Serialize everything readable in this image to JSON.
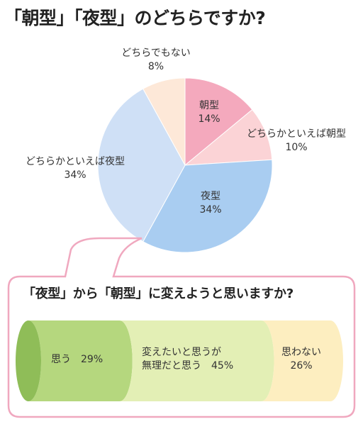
{
  "title": "「朝型」「夜型」のどちらですか?",
  "question2": "「夜型」から「朝型」に変えようと思いますか?",
  "chart_data": [
    {
      "type": "pie",
      "title": "「朝型」「夜型」のどちらですか?",
      "slices": [
        {
          "name": "朝型",
          "value": 14,
          "value_label": "14%",
          "color": "#f4a9bd"
        },
        {
          "name": "どちらかといえば朝型",
          "value": 10,
          "value_label": "10%",
          "color": "#fbd3d6"
        },
        {
          "name": "夜型",
          "value": 34,
          "value_label": "34%",
          "color": "#a9cdf1"
        },
        {
          "name": "どちらかといえば夜型",
          "value": 34,
          "value_label": "34%",
          "color": "#cfe0f6"
        },
        {
          "name": "どちらでもない",
          "value": 8,
          "value_label": "8%",
          "color": "#fde8d8"
        }
      ]
    },
    {
      "type": "bar",
      "orientation": "horizontal-stacked",
      "title": "「夜型」から「朝型」に変えようと思いますか?",
      "segments": [
        {
          "name": "思う",
          "value": 29,
          "value_label": "29%",
          "color": "#b5d77e"
        },
        {
          "name": "変えたいと思うが\n無理だと思う",
          "value": 45,
          "value_label": "45%",
          "color": "#e3efb5"
        },
        {
          "name": "思わない",
          "value": 26,
          "value_label": "26%",
          "color": "#fdeec0"
        }
      ]
    }
  ]
}
